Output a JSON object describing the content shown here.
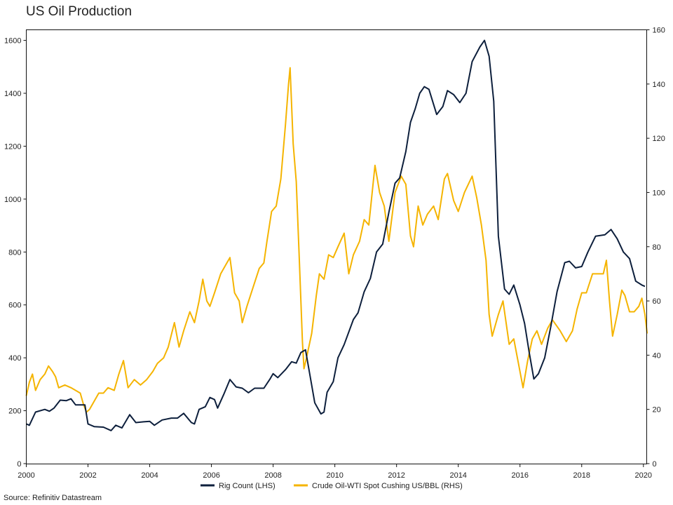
{
  "chart_data": {
    "type": "line",
    "title": "US Oil Production",
    "source": "Source: Refinitiv Datastream",
    "xlim": [
      2000,
      2020.1
    ],
    "x_ticks": [
      "2000",
      "2002",
      "2004",
      "2006",
      "2008",
      "2010",
      "2012",
      "2014",
      "2016",
      "2018",
      "2020"
    ],
    "y_left": {
      "label": "Rig Count (LHS)",
      "lim": [
        0,
        1640
      ],
      "ticks": [
        "0",
        "200",
        "400",
        "600",
        "800",
        "1000",
        "1200",
        "1400",
        "1600"
      ]
    },
    "y_right": {
      "label": "Crude Oil-WTI Spot Cushing US/BBL (RHS)",
      "lim": [
        0,
        160
      ],
      "ticks": [
        "0",
        "20",
        "40",
        "60",
        "80",
        "100",
        "120",
        "140",
        "160"
      ]
    },
    "legend_position": "bottom-center",
    "series": [
      {
        "name": "Rig Count (LHS)",
        "axis": "left",
        "color": "#0d1f3c",
        "points": [
          [
            2000.0,
            150
          ],
          [
            2000.1,
            145
          ],
          [
            2000.3,
            195
          ],
          [
            2000.6,
            205
          ],
          [
            2000.75,
            198
          ],
          [
            2000.9,
            210
          ],
          [
            2001.1,
            240
          ],
          [
            2001.3,
            238
          ],
          [
            2001.45,
            245
          ],
          [
            2001.6,
            222
          ],
          [
            2001.9,
            222
          ],
          [
            2002.0,
            150
          ],
          [
            2002.2,
            140
          ],
          [
            2002.5,
            138
          ],
          [
            2002.75,
            125
          ],
          [
            2002.9,
            145
          ],
          [
            2003.1,
            135
          ],
          [
            2003.35,
            185
          ],
          [
            2003.55,
            155
          ],
          [
            2003.8,
            158
          ],
          [
            2004.0,
            160
          ],
          [
            2004.15,
            145
          ],
          [
            2004.4,
            165
          ],
          [
            2004.7,
            172
          ],
          [
            2004.9,
            172
          ],
          [
            2005.1,
            190
          ],
          [
            2005.35,
            155
          ],
          [
            2005.45,
            150
          ],
          [
            2005.6,
            205
          ],
          [
            2005.8,
            215
          ],
          [
            2005.95,
            250
          ],
          [
            2006.1,
            242
          ],
          [
            2006.2,
            210
          ],
          [
            2006.4,
            262
          ],
          [
            2006.6,
            318
          ],
          [
            2006.8,
            290
          ],
          [
            2007.0,
            285
          ],
          [
            2007.2,
            268
          ],
          [
            2007.4,
            285
          ],
          [
            2007.7,
            285
          ],
          [
            2007.9,
            320
          ],
          [
            2008.0,
            340
          ],
          [
            2008.15,
            325
          ],
          [
            2008.4,
            355
          ],
          [
            2008.6,
            385
          ],
          [
            2008.75,
            380
          ],
          [
            2008.9,
            420
          ],
          [
            2009.05,
            430
          ],
          [
            2009.2,
            330
          ],
          [
            2009.35,
            230
          ],
          [
            2009.55,
            188
          ],
          [
            2009.65,
            195
          ],
          [
            2009.75,
            270
          ],
          [
            2009.95,
            310
          ],
          [
            2010.1,
            400
          ],
          [
            2010.3,
            450
          ],
          [
            2010.6,
            545
          ],
          [
            2010.75,
            570
          ],
          [
            2010.95,
            650
          ],
          [
            2011.15,
            700
          ],
          [
            2011.35,
            800
          ],
          [
            2011.55,
            830
          ],
          [
            2011.75,
            950
          ],
          [
            2011.95,
            1060
          ],
          [
            2012.1,
            1080
          ],
          [
            2012.3,
            1180
          ],
          [
            2012.45,
            1290
          ],
          [
            2012.6,
            1340
          ],
          [
            2012.75,
            1400
          ],
          [
            2012.9,
            1425
          ],
          [
            2013.05,
            1415
          ],
          [
            2013.3,
            1320
          ],
          [
            2013.5,
            1350
          ],
          [
            2013.65,
            1410
          ],
          [
            2013.85,
            1395
          ],
          [
            2014.05,
            1365
          ],
          [
            2014.25,
            1400
          ],
          [
            2014.45,
            1520
          ],
          [
            2014.7,
            1575
          ],
          [
            2014.85,
            1600
          ],
          [
            2015.0,
            1540
          ],
          [
            2015.15,
            1370
          ],
          [
            2015.3,
            860
          ],
          [
            2015.5,
            660
          ],
          [
            2015.65,
            640
          ],
          [
            2015.8,
            675
          ],
          [
            2016.0,
            600
          ],
          [
            2016.15,
            530
          ],
          [
            2016.3,
            420
          ],
          [
            2016.45,
            320
          ],
          [
            2016.6,
            340
          ],
          [
            2016.8,
            400
          ],
          [
            2017.0,
            520
          ],
          [
            2017.2,
            650
          ],
          [
            2017.45,
            760
          ],
          [
            2017.6,
            765
          ],
          [
            2017.8,
            740
          ],
          [
            2018.0,
            745
          ],
          [
            2018.2,
            800
          ],
          [
            2018.45,
            860
          ],
          [
            2018.75,
            865
          ],
          [
            2018.95,
            885
          ],
          [
            2019.15,
            850
          ],
          [
            2019.35,
            800
          ],
          [
            2019.55,
            775
          ],
          [
            2019.75,
            690
          ],
          [
            2019.95,
            675
          ],
          [
            2020.05,
            670
          ]
        ]
      },
      {
        "name": "Crude Oil-WTI Spot Cushing US/BBL (RHS)",
        "axis": "right",
        "color": "#f5b400",
        "points": [
          [
            2000.0,
            25
          ],
          [
            2000.1,
            30
          ],
          [
            2000.2,
            33
          ],
          [
            2000.3,
            27
          ],
          [
            2000.45,
            31
          ],
          [
            2000.6,
            33
          ],
          [
            2000.72,
            36
          ],
          [
            2000.85,
            34
          ],
          [
            2000.95,
            32
          ],
          [
            2001.05,
            28
          ],
          [
            2001.25,
            29
          ],
          [
            2001.45,
            28
          ],
          [
            2001.6,
            27
          ],
          [
            2001.75,
            26
          ],
          [
            2001.85,
            22
          ],
          [
            2001.95,
            19
          ],
          [
            2002.05,
            20
          ],
          [
            2002.2,
            23
          ],
          [
            2002.35,
            26
          ],
          [
            2002.5,
            26
          ],
          [
            2002.65,
            28
          ],
          [
            2002.85,
            27
          ],
          [
            2003.0,
            33
          ],
          [
            2003.15,
            38
          ],
          [
            2003.3,
            28
          ],
          [
            2003.5,
            31
          ],
          [
            2003.7,
            29
          ],
          [
            2003.9,
            31
          ],
          [
            2004.1,
            34
          ],
          [
            2004.25,
            37
          ],
          [
            2004.45,
            39
          ],
          [
            2004.6,
            43
          ],
          [
            2004.8,
            52
          ],
          [
            2004.95,
            43
          ],
          [
            2005.1,
            49
          ],
          [
            2005.3,
            56
          ],
          [
            2005.45,
            52
          ],
          [
            2005.6,
            60
          ],
          [
            2005.72,
            68
          ],
          [
            2005.85,
            60
          ],
          [
            2005.95,
            58
          ],
          [
            2006.1,
            63
          ],
          [
            2006.3,
            70
          ],
          [
            2006.5,
            74
          ],
          [
            2006.6,
            76
          ],
          [
            2006.75,
            63
          ],
          [
            2006.9,
            60
          ],
          [
            2007.0,
            52
          ],
          [
            2007.15,
            58
          ],
          [
            2007.35,
            65
          ],
          [
            2007.55,
            72
          ],
          [
            2007.7,
            74
          ],
          [
            2007.8,
            82
          ],
          [
            2007.95,
            93
          ],
          [
            2008.1,
            95
          ],
          [
            2008.25,
            105
          ],
          [
            2008.4,
            125
          ],
          [
            2008.5,
            140
          ],
          [
            2008.55,
            146
          ],
          [
            2008.65,
            118
          ],
          [
            2008.75,
            104
          ],
          [
            2008.85,
            75
          ],
          [
            2008.95,
            45
          ],
          [
            2009.0,
            35
          ],
          [
            2009.1,
            40
          ],
          [
            2009.25,
            48
          ],
          [
            2009.4,
            62
          ],
          [
            2009.5,
            70
          ],
          [
            2009.65,
            68
          ],
          [
            2009.8,
            77
          ],
          [
            2009.95,
            76
          ],
          [
            2010.1,
            80
          ],
          [
            2010.3,
            85
          ],
          [
            2010.45,
            70
          ],
          [
            2010.6,
            77
          ],
          [
            2010.8,
            82
          ],
          [
            2010.95,
            90
          ],
          [
            2011.1,
            88
          ],
          [
            2011.3,
            110
          ],
          [
            2011.45,
            100
          ],
          [
            2011.6,
            95
          ],
          [
            2011.75,
            82
          ],
          [
            2011.95,
            100
          ],
          [
            2012.15,
            106
          ],
          [
            2012.3,
            103
          ],
          [
            2012.45,
            84
          ],
          [
            2012.55,
            80
          ],
          [
            2012.7,
            95
          ],
          [
            2012.85,
            88
          ],
          [
            2013.0,
            92
          ],
          [
            2013.2,
            95
          ],
          [
            2013.35,
            90
          ],
          [
            2013.55,
            105
          ],
          [
            2013.65,
            107
          ],
          [
            2013.85,
            97
          ],
          [
            2014.0,
            93
          ],
          [
            2014.2,
            100
          ],
          [
            2014.45,
            106
          ],
          [
            2014.6,
            98
          ],
          [
            2014.75,
            88
          ],
          [
            2014.9,
            75
          ],
          [
            2015.0,
            55
          ],
          [
            2015.1,
            47
          ],
          [
            2015.3,
            55
          ],
          [
            2015.45,
            60
          ],
          [
            2015.55,
            52
          ],
          [
            2015.65,
            44
          ],
          [
            2015.8,
            46
          ],
          [
            2015.95,
            37
          ],
          [
            2016.1,
            28
          ],
          [
            2016.25,
            38
          ],
          [
            2016.4,
            46
          ],
          [
            2016.55,
            49
          ],
          [
            2016.7,
            44
          ],
          [
            2016.9,
            50
          ],
          [
            2017.05,
            53
          ],
          [
            2017.3,
            49
          ],
          [
            2017.5,
            45
          ],
          [
            2017.7,
            49
          ],
          [
            2017.85,
            57
          ],
          [
            2018.0,
            63
          ],
          [
            2018.15,
            63
          ],
          [
            2018.35,
            70
          ],
          [
            2018.5,
            70
          ],
          [
            2018.7,
            70
          ],
          [
            2018.8,
            75
          ],
          [
            2018.9,
            60
          ],
          [
            2019.0,
            47
          ],
          [
            2019.15,
            55
          ],
          [
            2019.3,
            64
          ],
          [
            2019.4,
            62
          ],
          [
            2019.55,
            56
          ],
          [
            2019.7,
            56
          ],
          [
            2019.85,
            58
          ],
          [
            2019.95,
            61
          ],
          [
            2020.05,
            55
          ],
          [
            2020.12,
            48
          ]
        ]
      }
    ]
  }
}
